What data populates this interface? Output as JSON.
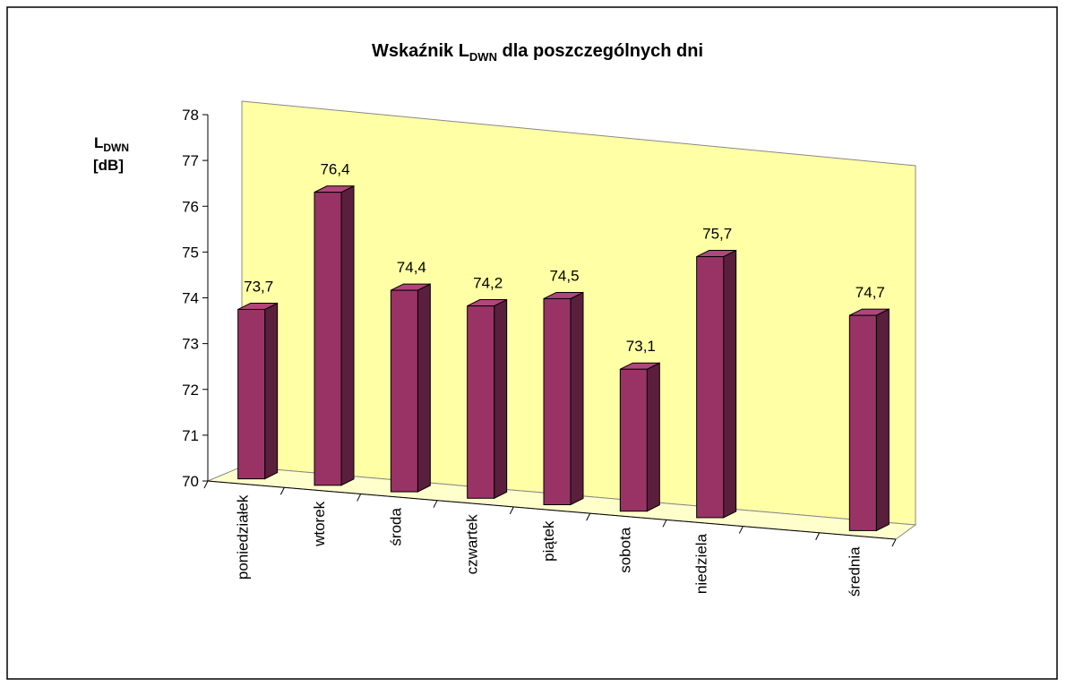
{
  "chart_data": {
    "type": "bar3d",
    "title": [
      "Wskaźnik L",
      "DWN",
      " dla poszczególnych dni"
    ],
    "y_label": [
      "L",
      "DWN",
      "[dB]"
    ],
    "categories": [
      "poniedziałek",
      "wtorek",
      "środa",
      "czwartek",
      "piątek",
      "sobota",
      "niedziela",
      null,
      "średnia"
    ],
    "values": [
      73.7,
      76.4,
      74.4,
      74.2,
      74.5,
      73.1,
      75.7,
      null,
      74.7
    ],
    "value_labels": [
      "73,7",
      "76,4",
      "74,4",
      "74,2",
      "74,5",
      "73,1",
      "75,7",
      null,
      "74,7"
    ],
    "color": "#993366",
    "ylim": [
      70,
      78
    ],
    "yticks": [
      70,
      71,
      72,
      73,
      74,
      75,
      76,
      77,
      78
    ],
    "grid": false
  }
}
